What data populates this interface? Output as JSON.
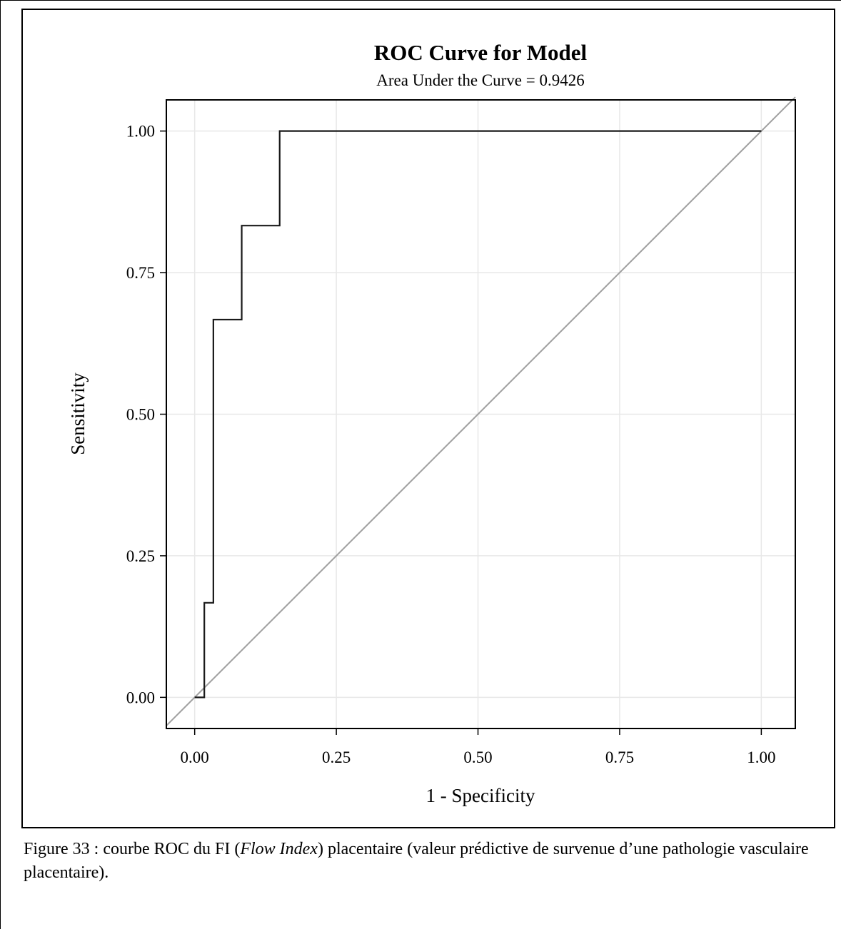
{
  "chart_data": {
    "type": "line",
    "title": "ROC Curve for Model",
    "subtitle": "Area Under the Curve = 0.9426",
    "xlabel": "1 - Specificity",
    "ylabel": "Sensitivity",
    "xlim": [
      -0.05,
      1.06
    ],
    "ylim": [
      -0.055,
      1.055
    ],
    "xticks": [
      "0.00",
      "0.25",
      "0.50",
      "0.75",
      "1.00"
    ],
    "yticks": [
      "0.00",
      "0.25",
      "0.50",
      "0.75",
      "1.00"
    ],
    "grid": true,
    "series": [
      {
        "x": [
          0.0,
          0.017,
          0.017,
          0.033,
          0.033,
          0.083,
          0.083,
          0.15,
          0.15,
          1.0
        ],
        "y": [
          0.0,
          0.0,
          0.167,
          0.167,
          0.667,
          0.667,
          0.833,
          0.833,
          1.0,
          1.0
        ],
        "color": "#1a1a1a"
      },
      {
        "x": [
          -0.05,
          1.06
        ],
        "y": [
          -0.05,
          1.06
        ],
        "color": "#a0a0a0"
      }
    ]
  },
  "caption": {
    "prefix": "Figure 33 : courbe ROC du FI (",
    "italic": "Flow Index",
    "suffix": ") placentaire (valeur prédictive de survenue d’une pathologie vasculaire placentaire)."
  }
}
